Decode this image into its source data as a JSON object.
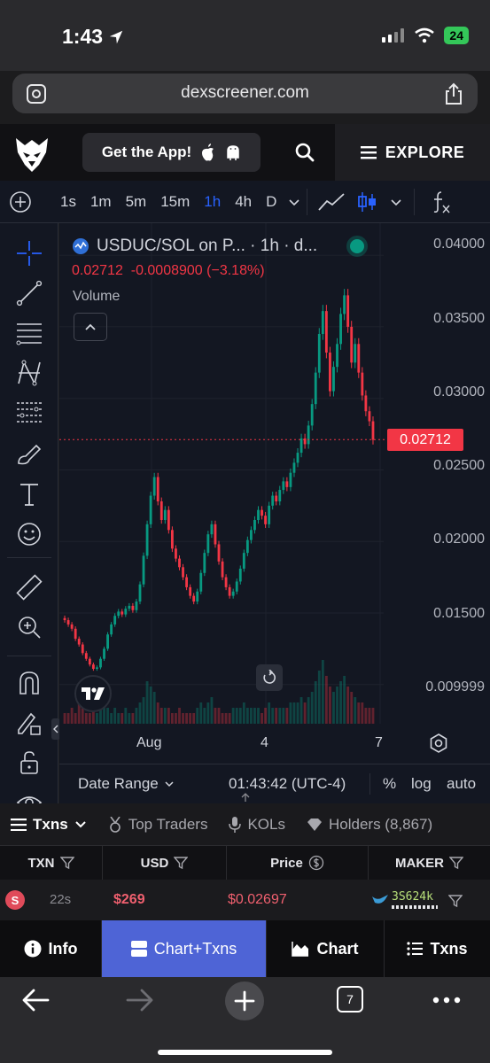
{
  "status": {
    "time": "1:43",
    "battery": "24"
  },
  "browser": {
    "url": "dexscreener.com",
    "tabs_count": "7"
  },
  "header": {
    "get_app": "Get the App!",
    "explore": "EXPLORE"
  },
  "chart_toolbar": {
    "intervals": [
      "1s",
      "1m",
      "5m",
      "15m",
      "1h",
      "4h",
      "D"
    ],
    "active_interval": "1h"
  },
  "legend": {
    "title": "USDUC/SOL on P... · 1h · d...",
    "last": "0.02712",
    "change": "-0.0008900",
    "change_pct": "(−3.18%)",
    "volume_label": "Volume"
  },
  "price_axis": {
    "labels": [
      "0.04000",
      "0.03500",
      "0.03000",
      "0.02500",
      "0.02000",
      "0.01500",
      "0.009999"
    ],
    "last_price": "0.02712"
  },
  "time_axis": {
    "labels": [
      "Aug",
      "4",
      "7"
    ]
  },
  "chart_data": {
    "type": "candlestick",
    "title": "USDUC/SOL on P... · 1h · d...",
    "ylim": [
      0.0085,
      0.041
    ],
    "y_ticks": [
      0.04,
      0.035,
      0.03,
      0.025,
      0.02,
      0.015,
      0.009999
    ],
    "x_ticks": [
      "Aug",
      "4",
      "7"
    ],
    "last_price": 0.02712,
    "close_series": [
      0.0145,
      0.0142,
      0.0139,
      0.0132,
      0.0128,
      0.0122,
      0.0118,
      0.0114,
      0.0111,
      0.0112,
      0.0118,
      0.0125,
      0.0135,
      0.0142,
      0.0148,
      0.0151,
      0.0149,
      0.0153,
      0.0155,
      0.0152,
      0.0158,
      0.017,
      0.019,
      0.0212,
      0.0232,
      0.0245,
      0.0228,
      0.0215,
      0.0222,
      0.0208,
      0.0195,
      0.0188,
      0.0182,
      0.0175,
      0.0168,
      0.0162,
      0.0158,
      0.0165,
      0.0178,
      0.0192,
      0.0205,
      0.0212,
      0.0198,
      0.0186,
      0.0175,
      0.0168,
      0.0162,
      0.0165,
      0.0172,
      0.0181,
      0.0192,
      0.0201,
      0.0208,
      0.0215,
      0.0222,
      0.0218,
      0.0212,
      0.0225,
      0.0232,
      0.0228,
      0.0236,
      0.0242,
      0.0238,
      0.0248,
      0.0255,
      0.0262,
      0.0272,
      0.0268,
      0.0281,
      0.0296,
      0.0318,
      0.0345,
      0.0361,
      0.0332,
      0.0305,
      0.0322,
      0.0338,
      0.0359,
      0.0372,
      0.035,
      0.0325,
      0.0338,
      0.0318,
      0.0302,
      0.0291,
      0.0284,
      0.0271
    ],
    "volume_series": [
      2,
      2,
      3,
      2,
      4,
      3,
      2,
      2,
      3,
      2,
      3,
      4,
      3,
      2,
      3,
      2,
      2,
      3,
      2,
      2,
      3,
      4,
      5,
      8,
      7,
      6,
      4,
      3,
      3,
      3,
      2,
      2,
      3,
      2,
      2,
      2,
      2,
      3,
      4,
      3,
      4,
      5,
      3,
      3,
      2,
      2,
      2,
      3,
      3,
      3,
      4,
      3,
      3,
      3,
      3,
      2,
      3,
      4,
      3,
      3,
      3,
      3,
      3,
      4,
      4,
      4,
      5,
      4,
      5,
      6,
      8,
      10,
      12,
      9,
      7,
      6,
      7,
      8,
      9,
      7,
      6,
      5,
      4,
      4,
      3,
      3,
      3
    ]
  },
  "chart_bottom": {
    "date_range": "Date Range",
    "clock": "01:43:42 (UTC-4)",
    "percent": "%",
    "log": "log",
    "auto": "auto"
  },
  "tabs": [
    "Txns",
    "Top Traders",
    "KOLs",
    "Holders (8,867)"
  ],
  "table": {
    "headers": [
      "TXN",
      "USD",
      "Price",
      "MAKER"
    ],
    "rows": [
      {
        "side": "S",
        "age": "22s",
        "usd": "$269",
        "price": "$0.02697",
        "maker": "3S624k"
      }
    ]
  },
  "bottom_nav": [
    "Info",
    "Chart+Txns",
    "Chart",
    "Txns"
  ],
  "colors": {
    "up": "#089981",
    "down": "#f23645",
    "accent": "#2962ff",
    "nav_active": "#4e64d6"
  }
}
